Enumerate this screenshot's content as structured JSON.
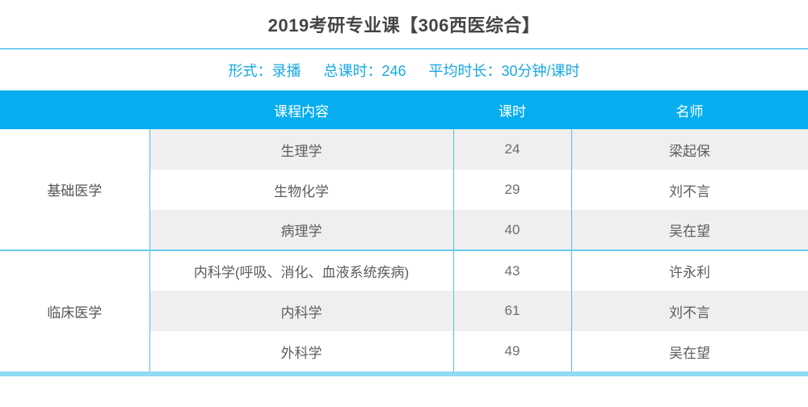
{
  "page": {
    "title": "2019考研专业课【306西医综合】"
  },
  "meta": {
    "items": [
      {
        "label": "形式：",
        "value": "录播"
      },
      {
        "label": "总课时：",
        "value": "246"
      },
      {
        "label": "平均时长：",
        "value": "30分钟/课时"
      }
    ]
  },
  "table": {
    "headers": {
      "category": "",
      "content": "课程内容",
      "hours": "课时",
      "teacher": "名师"
    },
    "groups": [
      {
        "category": "基础医学",
        "rows": [
          {
            "content": "生理学",
            "hours": "24",
            "teacher": "梁起保"
          },
          {
            "content": "生物化学",
            "hours": "29",
            "teacher": "刘不言"
          },
          {
            "content": "病理学",
            "hours": "40",
            "teacher": "吴在望"
          }
        ]
      },
      {
        "category": "临床医学",
        "rows": [
          {
            "content": "内科学(呼吸、消化、血液系统疾病)",
            "hours": "43",
            "teacher": "许永利"
          },
          {
            "content": "内科学",
            "hours": "61",
            "teacher": "刘不言"
          },
          {
            "content": "外科学",
            "hours": "49",
            "teacher": "吴在望"
          }
        ]
      }
    ]
  },
  "colors": {
    "header_bar": "#06aeef",
    "accent_text": "#17a8e3",
    "title_divider": "#0aa9e6",
    "cell_divider": "#4fbfeb",
    "group_separator": "#66ccf0",
    "bottom_bar": "#90daf3",
    "row_shaded": "#efefef"
  }
}
